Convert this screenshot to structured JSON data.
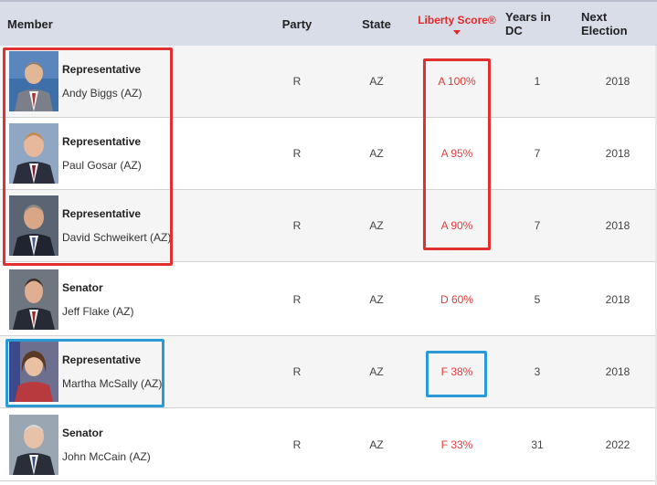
{
  "header": {
    "member": "Member",
    "party": "Party",
    "state": "State",
    "score": "Liberty Score®",
    "years": "Years in DC",
    "next": "Next Election"
  },
  "rows": [
    {
      "title": "Representative",
      "name": "Andy Biggs (AZ)",
      "party": "R",
      "state": "AZ",
      "score": "A 100%",
      "years": "1",
      "next": "2018"
    },
    {
      "title": "Representative",
      "name": "Paul Gosar (AZ)",
      "party": "R",
      "state": "AZ",
      "score": "A 95%",
      "years": "7",
      "next": "2018"
    },
    {
      "title": "Representative",
      "name": "David Schweikert (AZ)",
      "party": "R",
      "state": "AZ",
      "score": "A 90%",
      "years": "7",
      "next": "2018"
    },
    {
      "title": "Senator",
      "name": "Jeff Flake (AZ)",
      "party": "R",
      "state": "AZ",
      "score": "D 60%",
      "years": "5",
      "next": "2018"
    },
    {
      "title": "Representative",
      "name": "Martha McSally (AZ)",
      "party": "R",
      "state": "AZ",
      "score": "F 38%",
      "years": "3",
      "next": "2018"
    },
    {
      "title": "Senator",
      "name": "John McCain (AZ)",
      "party": "R",
      "state": "AZ",
      "score": "F 33%",
      "years": "31",
      "next": "2022"
    }
  ],
  "colors": {
    "score_red": "#e23b3b",
    "highlight_red": "#e03030",
    "highlight_blue": "#2a9ad6",
    "header_bg": "#d9dde8"
  }
}
